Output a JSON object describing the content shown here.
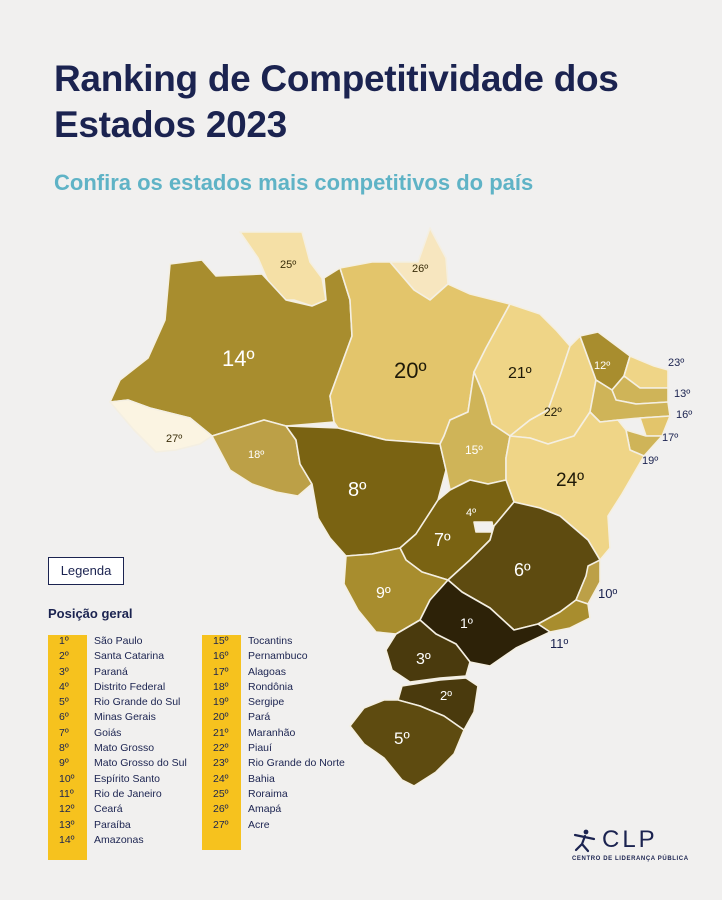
{
  "header": {
    "title": "Ranking de Competitividade dos Estados 2023",
    "subtitle": "Confira os estados mais competitivos do país"
  },
  "map": {
    "labels": {
      "SP": "1º",
      "SC": "2º",
      "PR": "3º",
      "DF": "4º",
      "RS": "5º",
      "MG": "6º",
      "GO": "7º",
      "MT": "8º",
      "MS": "9º",
      "ES": "10º",
      "RJ": "11º",
      "CE": "12º",
      "PB": "13º",
      "AM": "14º",
      "TO": "15º",
      "PE": "16º",
      "AL": "17º",
      "RO": "18º",
      "SE": "19º",
      "PA": "20º",
      "MA": "21º",
      "PI": "22º",
      "RN": "23º",
      "BA": "24º",
      "RR": "25º",
      "AP": "26º",
      "AC": "27º"
    },
    "colors": {
      "tier1": "#2d2208",
      "tier2": "#4a3a0d",
      "tier3": "#5e4b10",
      "tier4": "#7a6312",
      "tier5": "#8f7619",
      "tier6": "#a88d2e",
      "tier7": "#bca047",
      "tier8": "#cfb458",
      "tier9": "#e3c56b",
      "tier10": "#efd587",
      "tier11": "#f5e0a6",
      "tier12": "#f7e6bf",
      "tier13": "#fbf4e2"
    }
  },
  "legend": {
    "button_label": "Legenda",
    "title": "Posição geral",
    "column1": [
      {
        "rank": "1º",
        "state": "São Paulo"
      },
      {
        "rank": "2º",
        "state": "Santa Catarina"
      },
      {
        "rank": "3º",
        "state": "Paraná"
      },
      {
        "rank": "4º",
        "state": "Distrito Federal"
      },
      {
        "rank": "5º",
        "state": "Rio Grande do Sul"
      },
      {
        "rank": "6º",
        "state": "Minas Gerais"
      },
      {
        "rank": "7º",
        "state": "Goiás"
      },
      {
        "rank": "8º",
        "state": "Mato Grosso"
      },
      {
        "rank": "9º",
        "state": "Mato Grosso do Sul"
      },
      {
        "rank": "10º",
        "state": "Espírito Santo"
      },
      {
        "rank": "11º",
        "state": "Rio de Janeiro"
      },
      {
        "rank": "12º",
        "state": "Ceará"
      },
      {
        "rank": "13º",
        "state": "Paraíba"
      },
      {
        "rank": "14º",
        "state": "Amazonas"
      }
    ],
    "column2": [
      {
        "rank": "15º",
        "state": "Tocantins"
      },
      {
        "rank": "16º",
        "state": "Pernambuco"
      },
      {
        "rank": "17º",
        "state": "Alagoas"
      },
      {
        "rank": "18º",
        "state": "Rondônia"
      },
      {
        "rank": "19º",
        "state": "Sergipe"
      },
      {
        "rank": "20º",
        "state": "Pará"
      },
      {
        "rank": "21º",
        "state": "Maranhão"
      },
      {
        "rank": "22º",
        "state": "Piauí"
      },
      {
        "rank": "23º",
        "state": "Rio Grande do Norte"
      },
      {
        "rank": "24º",
        "state": "Bahia"
      },
      {
        "rank": "25º",
        "state": "Roraima"
      },
      {
        "rank": "26º",
        "state": "Amapá"
      },
      {
        "rank": "27º",
        "state": "Acre"
      }
    ]
  },
  "logo": {
    "name": "CLP",
    "tagline": "CENTRO DE LIDERANÇA PÚBLICA"
  }
}
